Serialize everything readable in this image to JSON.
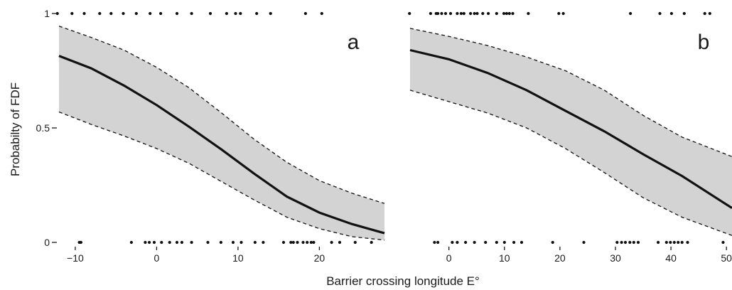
{
  "figure": {
    "ylabel": "Probabilty of FDF",
    "xlabel": "Barrier crossing longitude E°"
  },
  "colors": {
    "band": "#d3d3d3",
    "curve": "#111111",
    "points": "#111111"
  },
  "chart_data": [
    {
      "type": "line",
      "panel_label": "a",
      "xlim": [
        -12,
        28
      ],
      "ylim": [
        0,
        1
      ],
      "x_ticks": [
        -10,
        0,
        10,
        20
      ],
      "x_tick_labels": [
        "−10",
        "0",
        "10",
        "20"
      ],
      "y_ticks": [
        0,
        0.5,
        1
      ],
      "y_tick_labels": [
        "0",
        "0.5",
        "1"
      ],
      "series": [
        {
          "role": "fit",
          "style": "solid",
          "x": [
            -12,
            -8,
            -4,
            0,
            4,
            8,
            12,
            16,
            20,
            24,
            28
          ],
          "y": [
            0.815,
            0.76,
            0.685,
            0.6,
            0.505,
            0.405,
            0.3,
            0.2,
            0.13,
            0.08,
            0.04
          ]
        },
        {
          "role": "upper_ci",
          "style": "dashed",
          "x": [
            -12,
            -8,
            -4,
            0,
            4,
            8,
            12,
            16,
            20,
            24,
            28
          ],
          "y": [
            0.945,
            0.895,
            0.84,
            0.765,
            0.675,
            0.565,
            0.45,
            0.35,
            0.27,
            0.215,
            0.17
          ]
        },
        {
          "role": "lower_ci",
          "style": "dashed",
          "x": [
            -12,
            -8,
            -4,
            0,
            4,
            8,
            12,
            16,
            20,
            24,
            28
          ],
          "y": [
            0.57,
            0.515,
            0.465,
            0.41,
            0.345,
            0.265,
            0.185,
            0.11,
            0.06,
            0.025,
            0.01
          ]
        }
      ],
      "observations": {
        "y1_x": [
          -12.2,
          -10.4,
          -8.9,
          -7,
          -5.6,
          -4.1,
          -2.5,
          -0.8,
          0.5,
          2.5,
          4.3,
          6.6,
          8.6,
          9.7,
          10.3,
          12.3,
          14,
          18.3,
          20.3
        ],
        "y0_x": [
          -9.5,
          -9.3,
          -3.1,
          -1.4,
          -0.9,
          -0.3,
          0.6,
          1.6,
          2.5,
          3.1,
          4.3,
          6.3,
          7.9,
          9.4,
          10.4,
          12.1,
          13.1,
          15.6,
          16.5,
          16.8,
          17.3,
          18,
          18.5,
          19,
          19.3,
          21.5,
          22.5,
          24.4,
          26.4
        ]
      }
    },
    {
      "type": "line",
      "panel_label": "b",
      "xlim": [
        -7,
        51
      ],
      "ylim": [
        0,
        1
      ],
      "x_ticks": [
        0,
        10,
        20,
        30,
        40,
        50
      ],
      "x_tick_labels": [
        "0",
        "10",
        "20",
        "30",
        "40",
        "50"
      ],
      "series": [
        {
          "role": "fit",
          "style": "solid",
          "x": [
            -7,
            0,
            7,
            14,
            21,
            28,
            35,
            42,
            51
          ],
          "y": [
            0.84,
            0.8,
            0.74,
            0.665,
            0.575,
            0.485,
            0.385,
            0.29,
            0.15
          ]
        },
        {
          "role": "upper_ci",
          "style": "dashed",
          "x": [
            -7,
            0,
            7,
            14,
            21,
            28,
            35,
            42,
            51
          ],
          "y": [
            0.935,
            0.9,
            0.86,
            0.81,
            0.75,
            0.665,
            0.555,
            0.46,
            0.375
          ]
        },
        {
          "role": "lower_ci",
          "style": "dashed",
          "x": [
            -7,
            0,
            7,
            14,
            21,
            28,
            35,
            42,
            51
          ],
          "y": [
            0.665,
            0.615,
            0.565,
            0.5,
            0.41,
            0.305,
            0.195,
            0.11,
            0.03
          ]
        }
      ],
      "observations": {
        "y1_x": [
          -7.1,
          -3.3,
          -2.3,
          -2,
          -1.3,
          -0.6,
          0.3,
          1.5,
          2.2,
          2.7,
          3.9,
          4.6,
          5.1,
          6.1,
          7.1,
          8.6,
          9.9,
          10.4,
          10.9,
          11.5,
          14.3,
          19.8,
          20.6,
          32.7,
          38,
          40.1,
          42.4,
          46.1,
          47
        ],
        "y0_x": [
          -2.6,
          -2,
          0.6,
          1.5,
          3,
          4.6,
          6.6,
          8.6,
          10,
          11.7,
          13.1,
          18.7,
          24.3,
          30.3,
          31.1,
          31.8,
          32.6,
          33.3,
          34.1,
          37.7,
          39.2,
          39.9,
          40.6,
          41.3,
          42,
          43,
          49.4
        ]
      }
    }
  ]
}
